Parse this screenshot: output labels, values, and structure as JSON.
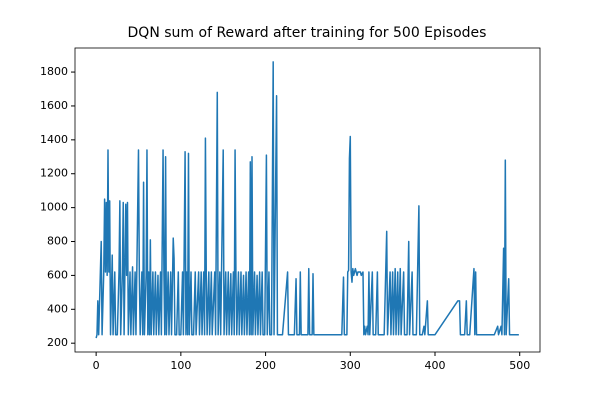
{
  "chart_data": {
    "type": "line",
    "title": "DQN sum of Reward after training for 500 Episodes",
    "color": "#1f77b4",
    "xlim": [
      -24.95,
      523.95
    ],
    "ylim": [
      148,
      1942
    ],
    "xticks": [
      0,
      100,
      200,
      300,
      400,
      500
    ],
    "yticks": [
      200,
      400,
      600,
      800,
      1000,
      1200,
      1400,
      1600,
      1800
    ],
    "grid": false,
    "x": [
      0,
      1,
      2,
      3,
      5,
      6,
      7,
      9,
      10,
      11,
      12,
      13,
      14,
      15,
      16,
      17,
      19,
      20,
      22,
      23,
      25,
      27,
      28,
      29,
      31,
      32,
      33,
      35,
      36,
      37,
      38,
      40,
      41,
      43,
      44,
      46,
      47,
      50,
      51,
      52,
      54,
      55,
      56,
      57,
      59,
      60,
      61,
      62,
      63,
      64,
      65,
      67,
      68,
      70,
      71,
      73,
      74,
      76,
      77,
      79,
      80,
      81,
      82,
      83,
      85,
      86,
      88,
      89,
      91,
      92,
      93,
      95,
      97,
      98,
      100,
      102,
      103,
      105,
      106,
      107,
      108,
      109,
      110,
      112,
      113,
      115,
      117,
      118,
      121,
      122,
      124,
      125,
      127,
      128,
      129,
      130,
      131,
      133,
      134,
      136,
      137,
      140,
      141,
      143,
      144,
      146,
      147,
      150,
      151,
      153,
      154,
      156,
      157,
      159,
      160,
      162,
      163,
      164,
      165,
      166,
      168,
      169,
      171,
      172,
      174,
      175,
      177,
      178,
      180,
      181,
      182,
      183,
      184,
      185,
      187,
      188,
      190,
      191,
      193,
      194,
      196,
      197,
      199,
      201,
      202,
      204,
      205,
      207,
      209,
      210,
      213,
      214,
      216,
      220,
      226,
      227,
      234,
      236,
      237,
      240,
      241,
      242,
      250,
      251,
      252,
      255,
      256,
      257,
      290,
      292,
      293,
      296,
      297,
      298,
      299,
      300,
      301,
      302,
      303,
      304,
      305,
      306,
      307,
      308,
      309,
      310,
      312,
      313,
      315,
      316,
      317,
      318,
      320,
      321,
      322,
      323,
      326,
      327,
      330,
      332,
      333,
      336,
      340,
      343,
      344,
      347,
      348,
      350,
      351,
      353,
      354,
      356,
      357,
      359,
      360,
      363,
      364,
      367,
      369,
      370,
      373,
      374,
      378,
      381,
      382,
      385,
      387,
      388,
      391,
      392,
      400,
      427,
      428,
      429,
      430,
      435,
      437,
      438,
      441,
      446,
      447,
      448,
      449,
      470,
      474,
      475,
      478,
      479,
      481,
      482,
      483,
      484,
      487,
      488,
      490,
      499
    ],
    "values": [
      230,
      250,
      450,
      250,
      620,
      800,
      250,
      620,
      1050,
      620,
      1030,
      600,
      1340,
      620,
      1040,
      250,
      720,
      250,
      620,
      250,
      250,
      620,
      1040,
      250,
      620,
      1030,
      250,
      1020,
      600,
      1030,
      250,
      620,
      250,
      650,
      250,
      620,
      250,
      1340,
      600,
      250,
      620,
      250,
      1150,
      250,
      600,
      1340,
      250,
      620,
      250,
      810,
      250,
      620,
      250,
      620,
      250,
      600,
      250,
      620,
      250,
      1340,
      620,
      250,
      1300,
      250,
      620,
      250,
      620,
      250,
      820,
      700,
      250,
      250,
      620,
      250,
      250,
      620,
      250,
      1330,
      250,
      620,
      250,
      1320,
      250,
      620,
      250,
      250,
      620,
      250,
      620,
      250,
      620,
      250,
      620,
      250,
      1410,
      600,
      250,
      620,
      250,
      620,
      250,
      620,
      250,
      1680,
      250,
      620,
      250,
      1340,
      250,
      620,
      250,
      620,
      250,
      610,
      250,
      620,
      250,
      1340,
      620,
      250,
      620,
      250,
      620,
      250,
      600,
      250,
      620,
      250,
      620,
      250,
      1270,
      250,
      1300,
      250,
      620,
      250,
      600,
      250,
      620,
      250,
      620,
      250,
      250,
      1310,
      250,
      620,
      250,
      250,
      1860,
      250,
      1660,
      250,
      250,
      250,
      620,
      250,
      250,
      580,
      250,
      250,
      620,
      250,
      250,
      640,
      250,
      250,
      610,
      250,
      250,
      590,
      250,
      250,
      620,
      630,
      1290,
      1420,
      620,
      560,
      640,
      600,
      620,
      640,
      620,
      600,
      620,
      620,
      620,
      600,
      620,
      250,
      300,
      250,
      300,
      250,
      620,
      250,
      620,
      250,
      250,
      620,
      250,
      250,
      250,
      860,
      250,
      620,
      250,
      620,
      250,
      640,
      250,
      620,
      250,
      640,
      250,
      620,
      250,
      250,
      800,
      250,
      620,
      250,
      250,
      1010,
      250,
      250,
      300,
      250,
      450,
      250,
      250,
      450,
      450,
      450,
      250,
      250,
      450,
      250,
      250,
      640,
      250,
      620,
      250,
      250,
      300,
      250,
      300,
      250,
      760,
      250,
      1280,
      250,
      580,
      250,
      250,
      250
    ]
  }
}
